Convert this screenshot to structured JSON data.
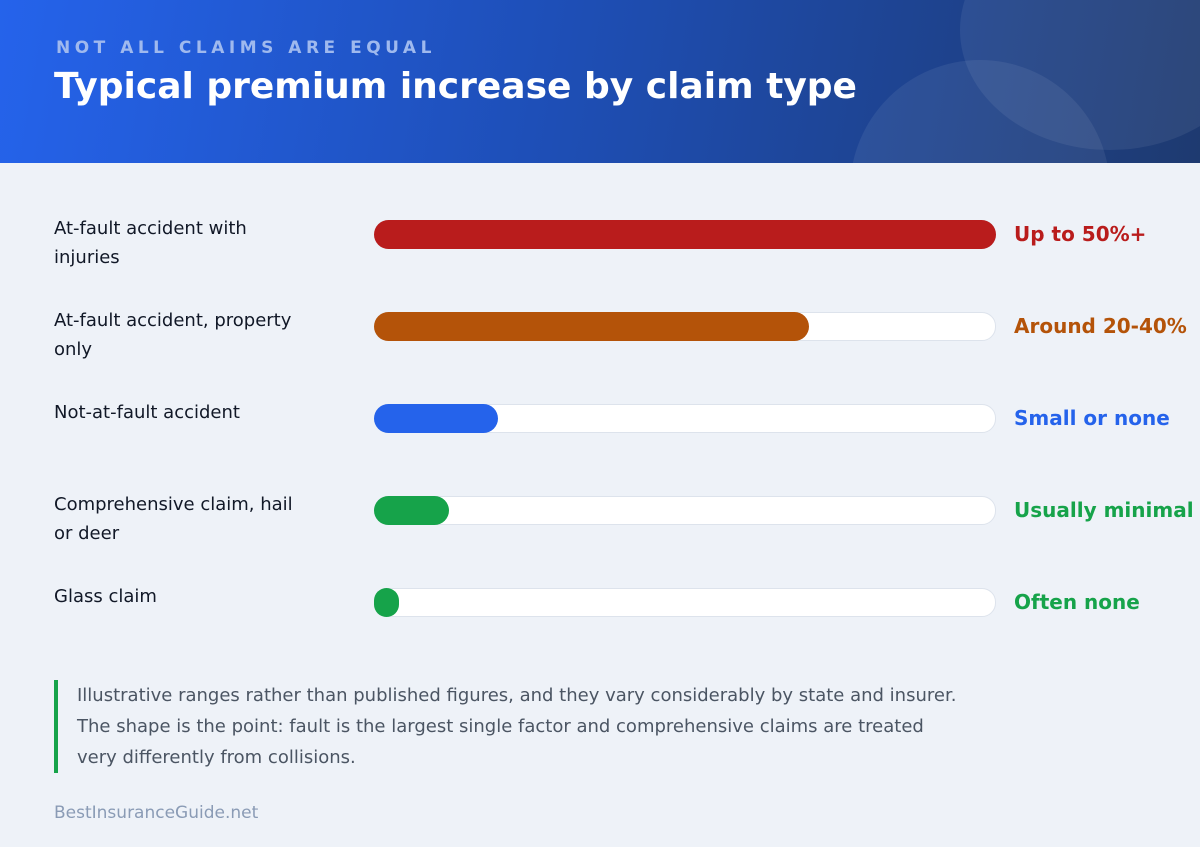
{
  "chart_data": {
    "type": "bar",
    "orientation": "horizontal",
    "kicker": "NOT ALL CLAIMS ARE EQUAL",
    "title": "Typical premium increase by claim type",
    "categories": [
      "At-fault accident with injuries",
      "At-fault accident, property only",
      "Not-at-fault accident",
      "Comprehensive claim, hail or deer",
      "Glass claim"
    ],
    "values": [
      100,
      70,
      20,
      12,
      4
    ],
    "colors": [
      "#b91c1c",
      "#b45309",
      "#2563eb",
      "#16a34a",
      "#16a34a"
    ],
    "range_labels": [
      "Up to 50%+",
      "Around 20-40%",
      "Small or none",
      "Usually minimal",
      "Often none"
    ],
    "xlim": [
      0,
      100
    ],
    "note": "Illustrative ranges rather than published figures, and they vary considerably by state and insurer. The shape is the point: fault is the largest single factor and comprehensive claims are treated very differently from collisions.",
    "source": "BestInsuranceGuide.net"
  }
}
